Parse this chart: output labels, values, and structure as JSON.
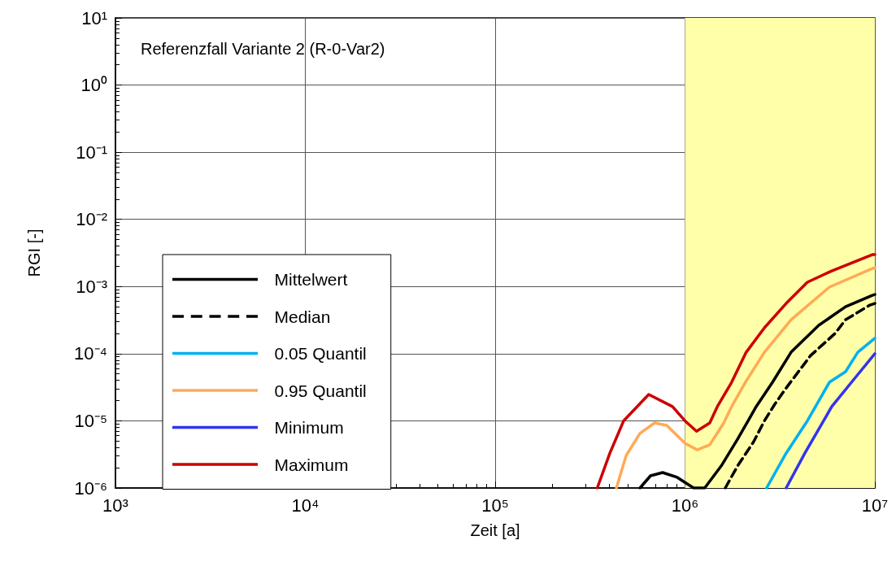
{
  "chart_data": {
    "type": "line",
    "xlabel": "Zeit [a]",
    "ylabel": "RGI [-]",
    "annotations": [
      "Referenzfall Variante 2 (R-0-Var2)"
    ],
    "log": "xy",
    "grid": true,
    "legend": "bottom left",
    "marker": "none",
    "xlim": [
      1000,
      10000000
    ],
    "xticks": [
      {
        "value": 1000,
        "label": "10³"
      },
      {
        "value": 10000,
        "label": "10⁴"
      },
      {
        "value": 100000,
        "label": "10⁵"
      },
      {
        "value": 1000000,
        "label": "10⁶"
      },
      {
        "value": 10000000,
        "label": "10⁷"
      }
    ],
    "ylim": [
      1e-06,
      10
    ],
    "yticks": [
      {
        "value": 1e-06,
        "label": "10⁻⁶"
      },
      {
        "value": 1e-05,
        "label": "10⁻⁵"
      },
      {
        "value": 0.0001,
        "label": "10⁻⁴"
      },
      {
        "value": 0.001,
        "label": "10⁻³"
      },
      {
        "value": 0.01,
        "label": "10⁻²"
      },
      {
        "value": 0.1,
        "label": "10⁻¹"
      },
      {
        "value": 1,
        "label": "10⁰"
      },
      {
        "value": 10,
        "label": "10¹"
      }
    ],
    "bands": [
      {
        "axis": "x",
        "from": 1000000,
        "to": 10000000,
        "color": "#ffffaa"
      }
    ],
    "series": [
      {
        "name": "Mittelwert",
        "color": "#000000",
        "line_style": "solid",
        "x": [
          579000,
          658000,
          762000,
          910000,
          1110000,
          1270000,
          1550000,
          1890000,
          2150000,
          2370000,
          2890000,
          3620000,
          5060000,
          7010000,
          9700000,
          10000000
        ],
        "values": [
          1e-06,
          1.52e-06,
          1.7e-06,
          1.44e-06,
          1e-06,
          1e-06,
          2.12e-06,
          5.3e-06,
          1e-05,
          1.63e-05,
          3.75e-05,
          0.000105,
          0.000264,
          0.0005,
          0.00074,
          0.00076
        ]
      },
      {
        "name": "Median",
        "color": "#000000",
        "line_style": "dashed",
        "x": [
          1630000,
          1890000,
          2300000,
          2620000,
          2970000,
          3410000,
          4590000,
          6170000,
          7010000,
          9420000,
          10000000
        ],
        "values": [
          1e-06,
          2.12e-06,
          4.9e-06,
          1e-05,
          1.77e-05,
          3.08e-05,
          9.4e-05,
          0.0002,
          0.00032,
          0.00053,
          0.00056
        ]
      },
      {
        "name": "0.05 Quantil",
        "color": "#00b0f0",
        "line_style": "solid",
        "x": [
          2690000,
          3410000,
          4410000,
          4870000,
          5760000,
          7010000,
          8130000,
          10000000
        ],
        "values": [
          1e-06,
          3.3e-06,
          1e-05,
          1.63e-05,
          3.75e-05,
          5.4e-05,
          0.000105,
          0.00017
        ]
      },
      {
        "name": "0.95 Quantil",
        "color": "#ffaa55",
        "line_style": "solid",
        "x": [
          435000,
          490000,
          579000,
          691000,
          801000,
          1000000,
          1160000,
          1350000,
          1600000,
          1760000,
          2080000,
          2620000,
          3620000,
          5760000,
          9700000,
          10000000
        ],
        "values": [
          1e-06,
          3.05e-06,
          6.5e-06,
          9.3e-06,
          8.55e-06,
          4.63e-06,
          3.7e-06,
          4.4e-06,
          9.3e-06,
          1.63e-05,
          3.75e-05,
          0.000105,
          0.00032,
          0.00098,
          0.00186,
          0.0019
        ]
      },
      {
        "name": "Minimum",
        "color": "#3333ee",
        "line_style": "solid",
        "x": [
          3410000,
          4280000,
          5370000,
          5930000,
          7970000,
          10000000
        ],
        "values": [
          1e-06,
          3.3e-06,
          1e-05,
          1.63e-05,
          4.56e-05,
          0.0001
        ]
      },
      {
        "name": "Maximum",
        "color": "#cc0000",
        "line_style": "solid",
        "x": [
          345000,
          402000,
          475000,
          644000,
          859000,
          1000000,
          1150000,
          1350000,
          1480000,
          1760000,
          2100000,
          2620000,
          3410000,
          4410000,
          5930000,
          9700000,
          10000000
        ],
        "values": [
          1e-06,
          3.3e-06,
          1e-05,
          2.47e-05,
          1.63e-05,
          1e-05,
          7e-06,
          9.3e-06,
          1.63e-05,
          3.75e-05,
          0.000105,
          0.000243,
          0.00056,
          0.00116,
          0.00171,
          0.00299,
          0.003
        ]
      }
    ]
  }
}
